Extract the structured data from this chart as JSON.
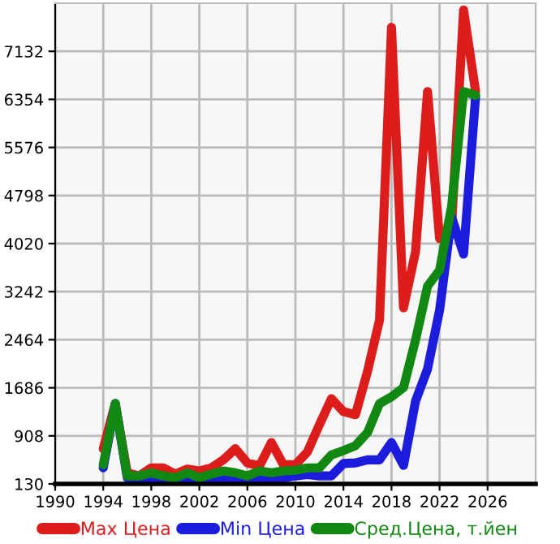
{
  "chart_data": {
    "type": "line",
    "x": [
      1994,
      1995,
      1996,
      1997,
      1998,
      1999,
      2000,
      2001,
      2002,
      2003,
      2004,
      2005,
      2006,
      2007,
      2008,
      2009,
      2010,
      2011,
      2012,
      2013,
      2014,
      2015,
      2016,
      2017,
      2018,
      2019,
      2020,
      2021,
      2022,
      2023,
      2024,
      2025
    ],
    "series": [
      {
        "name": "Max Цена",
        "color": "#dd1c1c",
        "values": [
          700,
          1430,
          310,
          260,
          390,
          390,
          290,
          370,
          340,
          390,
          520,
          700,
          470,
          420,
          800,
          440,
          440,
          650,
          1090,
          1510,
          1300,
          1250,
          1950,
          2780,
          7520,
          2980,
          3890,
          6480,
          4100,
          4300,
          7800,
          6480
        ]
      },
      {
        "name": "Min Цена",
        "color": "#1c1cdd",
        "values": [
          390,
          1430,
          230,
          130,
          210,
          180,
          170,
          200,
          170,
          170,
          200,
          210,
          180,
          210,
          230,
          230,
          260,
          280,
          260,
          260,
          460,
          470,
          520,
          520,
          800,
          430,
          1470,
          1990,
          2940,
          4450,
          3850,
          6400
        ]
      },
      {
        "name": "Сред.Цена, т.йен",
        "color": "#118811",
        "values": [
          440,
          1430,
          260,
          260,
          310,
          260,
          230,
          310,
          230,
          290,
          340,
          310,
          260,
          340,
          310,
          340,
          350,
          390,
          390,
          600,
          670,
          750,
          960,
          1430,
          1540,
          1690,
          2460,
          3330,
          3590,
          4620,
          6480,
          6420
        ]
      }
    ],
    "xlim": [
      1990,
      2030
    ],
    "xticks": [
      1990,
      1994,
      1998,
      2002,
      2006,
      2010,
      2014,
      2018,
      2022,
      2026
    ],
    "ylim": [
      130,
      7910
    ],
    "yticks": [
      130,
      908,
      1686,
      2464,
      3242,
      4020,
      4798,
      5576,
      6354,
      7132
    ],
    "grid": true,
    "legend": "bottom",
    "marker": "none",
    "line_style": "solid"
  }
}
